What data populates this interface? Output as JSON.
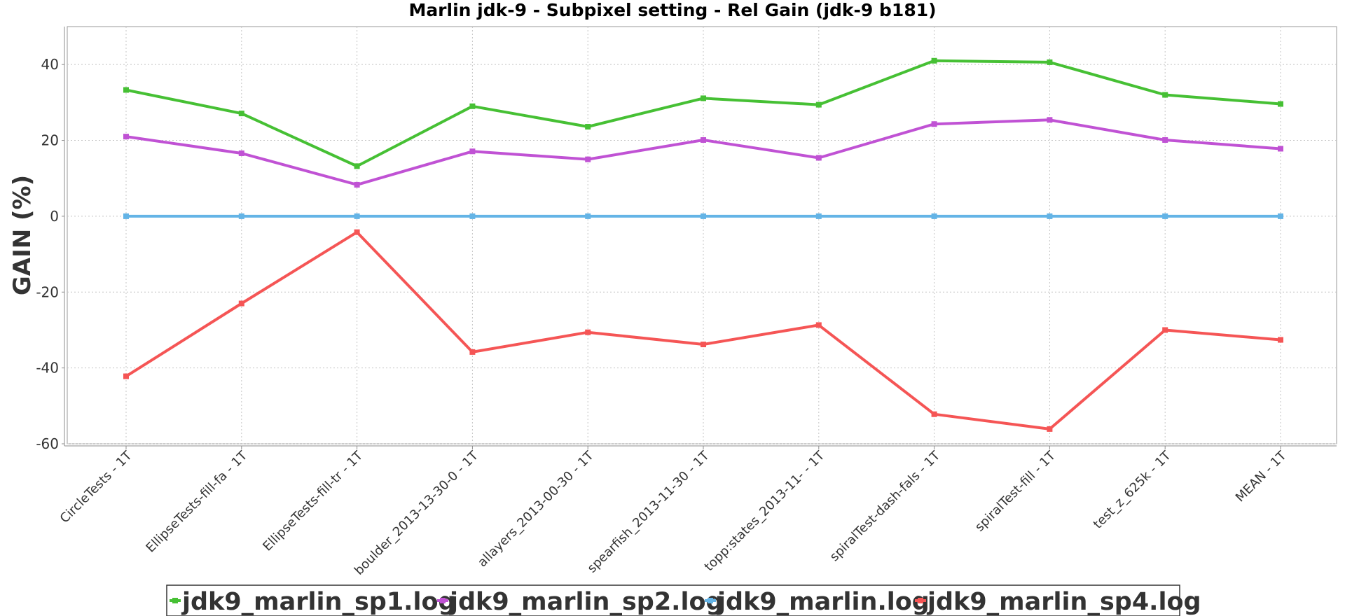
{
  "chart_data": {
    "type": "line",
    "title": "Marlin jdk-9 - Subpixel setting - Rel Gain (jdk-9 b181)",
    "xlabel": "",
    "ylabel": "GAIN (%)",
    "ylim": [
      -60,
      50
    ],
    "yticks": [
      -60,
      -40,
      -20,
      0,
      20,
      40
    ],
    "grid": true,
    "legend_position": "bottom",
    "categories": [
      "CircleTests - 1T",
      "EllipseTests-fill-fa - 1T",
      "EllipseTests-fill-tr - 1T",
      "boulder_2013-13-30-0 - 1T",
      "allayers_2013-00-30 - 1T",
      "spearfish_2013-11-30 - 1T",
      "topp:states_2013-11- - 1T",
      "spiralTest-dash-fals - 1T",
      "spiralTest-fill - 1T",
      "test_z_625k - 1T",
      "MEAN - 1T"
    ],
    "series": [
      {
        "name": "jdk9_marlin_sp1.log",
        "color": "#46c034",
        "values": [
          33.3,
          27.1,
          13.2,
          29.0,
          23.6,
          31.1,
          29.4,
          41.0,
          40.6,
          32.0,
          29.6
        ]
      },
      {
        "name": "jdk9_marlin_sp2.log",
        "color": "#c052d4",
        "values": [
          21.0,
          16.6,
          8.3,
          17.1,
          15.0,
          20.1,
          15.4,
          24.3,
          25.4,
          20.1,
          17.8
        ]
      },
      {
        "name": "jdk9_marlin.log",
        "color": "#64b4e6",
        "values": [
          0,
          0,
          0,
          0,
          0,
          0,
          0,
          0,
          0,
          0,
          0
        ]
      },
      {
        "name": "jdk9_marlin_sp4.log",
        "color": "#f55555",
        "values": [
          -42.2,
          -23.0,
          -4.2,
          -35.8,
          -30.6,
          -33.8,
          -28.7,
          -52.2,
          -56.1,
          -30.0,
          -32.6
        ]
      }
    ]
  }
}
